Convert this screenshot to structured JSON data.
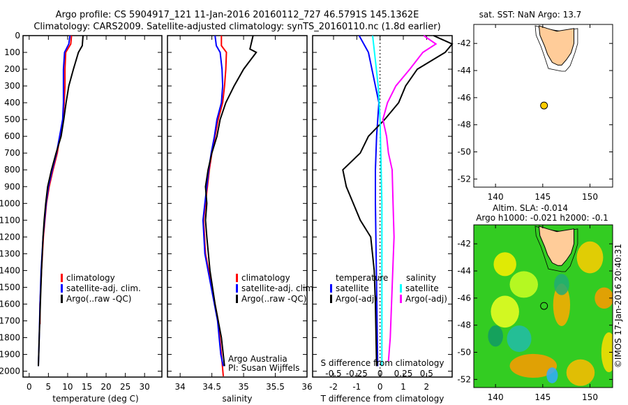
{
  "title": {
    "line1": "Argo profile: CS 5904917_121 11-Jan-2016 20160112_727 46.5791S 145.1362E",
    "line2": "Climatology: CARS2009. Satellite-adjusted climatology: synTS_20160110.nc (1.8d earlier)"
  },
  "colors": {
    "climatology": "#ff0000",
    "satellite": "#0000ff",
    "argo": "#000000",
    "sal_satellite": "#00ffff",
    "sal_argo": "#ff00ff",
    "land": "#ffcc99",
    "argo_marker": "#ffcc00"
  },
  "chart_data": [
    {
      "type": "line",
      "id": "temperature",
      "xlabel": "temperature (deg C)",
      "ylabel": "",
      "xlim": [
        -1.6,
        34.5
      ],
      "ylim": [
        2035,
        0
      ],
      "xticks": [
        0,
        5,
        10,
        15,
        20,
        25,
        30
      ],
      "yticks": [
        0,
        100,
        200,
        300,
        400,
        500,
        600,
        700,
        800,
        900,
        1000,
        1100,
        1200,
        1300,
        1400,
        1500,
        1600,
        1700,
        1800,
        1900,
        2000
      ],
      "legend": [
        "climatology",
        "satellite-adj. clim.",
        "Argo(..raw -QC)"
      ],
      "series": [
        {
          "name": "climatology",
          "color": "#ff0000",
          "points": [
            [
              11,
              0
            ],
            [
              10.8,
              50
            ],
            [
              9.5,
              100
            ],
            [
              9.3,
              200
            ],
            [
              9.3,
              300
            ],
            [
              9.1,
              400
            ],
            [
              8.8,
              500
            ],
            [
              8,
              600
            ],
            [
              7.3,
              700
            ],
            [
              6.2,
              800
            ],
            [
              5.2,
              900
            ],
            [
              4.5,
              1000
            ],
            [
              3.7,
              1200
            ],
            [
              3.2,
              1400
            ],
            [
              2.8,
              1600
            ],
            [
              2.8,
              1720
            ]
          ]
        },
        {
          "name": "satellite-adj. clim.",
          "color": "#0000ff",
          "points": [
            [
              10.6,
              0
            ],
            [
              10.3,
              50
            ],
            [
              9.2,
              100
            ],
            [
              8.9,
              200
            ],
            [
              8.9,
              300
            ],
            [
              8.9,
              400
            ],
            [
              8.7,
              500
            ],
            [
              7.9,
              600
            ],
            [
              7.1,
              700
            ],
            [
              6,
              800
            ],
            [
              5,
              900
            ],
            [
              4.4,
              1000
            ],
            [
              3.6,
              1200
            ],
            [
              3.1,
              1400
            ],
            [
              2.8,
              1600
            ],
            [
              2.6,
              1800
            ],
            [
              2.4,
              1970
            ]
          ]
        },
        {
          "name": "Argo(..raw -QC)",
          "color": "#000000",
          "points": [
            [
              14,
              0
            ],
            [
              13.8,
              60
            ],
            [
              12.8,
              100
            ],
            [
              11.5,
              200
            ],
            [
              10.3,
              300
            ],
            [
              9.6,
              400
            ],
            [
              9,
              500
            ],
            [
              8.3,
              600
            ],
            [
              7,
              700
            ],
            [
              5.8,
              800
            ],
            [
              4.8,
              900
            ],
            [
              4.3,
              1000
            ],
            [
              3.9,
              1100
            ],
            [
              3.6,
              1200
            ],
            [
              3.2,
              1400
            ],
            [
              2.9,
              1600
            ],
            [
              2.6,
              1800
            ],
            [
              2.4,
              1970
            ]
          ]
        }
      ]
    },
    {
      "type": "line",
      "id": "salinity",
      "xlabel": "salinity",
      "xlim": [
        33.8,
        36.0
      ],
      "ylim": [
        2035,
        0
      ],
      "xticks": [
        34,
        34.5,
        35,
        35.5,
        36
      ],
      "legend": [
        "climatology",
        "satellite-adj. clim.",
        "Argo(..raw -QC)"
      ],
      "annotation": [
        "Argo Australia",
        "PI: Susan Wijffels"
      ],
      "series": [
        {
          "name": "climatology",
          "color": "#ff0000",
          "points": [
            [
              34.65,
              0
            ],
            [
              34.65,
              60
            ],
            [
              34.73,
              100
            ],
            [
              34.72,
              200
            ],
            [
              34.7,
              300
            ],
            [
              34.67,
              400
            ],
            [
              34.6,
              500
            ],
            [
              34.55,
              600
            ],
            [
              34.5,
              700
            ],
            [
              34.46,
              800
            ],
            [
              34.4,
              1000
            ],
            [
              34.37,
              1100
            ],
            [
              34.4,
              1300
            ],
            [
              34.5,
              1500
            ],
            [
              34.6,
              1700
            ],
            [
              34.65,
              1900
            ],
            [
              34.68,
              2030
            ]
          ]
        },
        {
          "name": "satellite-adj. clim.",
          "color": "#0000ff",
          "points": [
            [
              34.55,
              0
            ],
            [
              34.57,
              60
            ],
            [
              34.63,
              100
            ],
            [
              34.66,
              200
            ],
            [
              34.67,
              300
            ],
            [
              34.65,
              400
            ],
            [
              34.58,
              500
            ],
            [
              34.54,
              600
            ],
            [
              34.49,
              700
            ],
            [
              34.45,
              800
            ],
            [
              34.39,
              1000
            ],
            [
              34.36,
              1100
            ],
            [
              34.39,
              1300
            ],
            [
              34.49,
              1500
            ],
            [
              34.59,
              1700
            ],
            [
              34.64,
              1900
            ],
            [
              34.68,
              1970
            ]
          ]
        },
        {
          "name": "Argo(..raw -QC)",
          "color": "#000000",
          "points": [
            [
              35.15,
              0
            ],
            [
              35.1,
              80
            ],
            [
              35.2,
              100
            ],
            [
              35.0,
              200
            ],
            [
              34.85,
              300
            ],
            [
              34.72,
              400
            ],
            [
              34.63,
              500
            ],
            [
              34.58,
              600
            ],
            [
              34.5,
              700
            ],
            [
              34.44,
              800
            ],
            [
              34.4,
              900
            ],
            [
              34.42,
              1000
            ],
            [
              34.4,
              1100
            ],
            [
              34.42,
              1200
            ],
            [
              34.47,
              1400
            ],
            [
              34.55,
              1600
            ],
            [
              34.65,
              1800
            ],
            [
              34.7,
              1970
            ]
          ]
        }
      ]
    },
    {
      "type": "line",
      "id": "difference",
      "xlabel": "T difference from climatology",
      "x2label": "S difference from climatology",
      "xlim": [
        -2.9,
        3.1
      ],
      "x2lim": [
        -0.725,
        0.775
      ],
      "ylim": [
        2035,
        0
      ],
      "xticks": [
        -2,
        -1,
        0,
        1,
        2
      ],
      "x2ticks": [
        -0.5,
        -0.25,
        0,
        0.25,
        0.5
      ],
      "x2ticklabels": [
        "-0.5",
        "-0.25",
        "0",
        "0.25",
        "0.5"
      ],
      "legend_temperature": {
        "title": "temperature",
        "items": [
          "satellite",
          "Argo(-adj)"
        ]
      },
      "legend_salinity": {
        "title": "salinity",
        "items": [
          "satellite",
          "Argo(-adj)"
        ]
      },
      "series": [
        {
          "name": "T satellite",
          "axis": "T",
          "color": "#0000ff",
          "points": [
            [
              -0.9,
              0
            ],
            [
              -0.5,
              100
            ],
            [
              -0.2,
              300
            ],
            [
              -0.05,
              400
            ],
            [
              -0.15,
              600
            ],
            [
              -0.2,
              800
            ],
            [
              -0.2,
              1000
            ],
            [
              -0.15,
              1500
            ],
            [
              -0.1,
              1970
            ]
          ]
        },
        {
          "name": "T Argo(-adj)",
          "axis": "T",
          "color": "#000000",
          "points": [
            [
              2.3,
              0
            ],
            [
              3.1,
              50
            ],
            [
              2.8,
              100
            ],
            [
              1.6,
              200
            ],
            [
              1.1,
              300
            ],
            [
              0.8,
              400
            ],
            [
              0.2,
              500
            ],
            [
              -0.5,
              600
            ],
            [
              -0.85,
              700
            ],
            [
              -1.6,
              800
            ],
            [
              -1.45,
              900
            ],
            [
              -1.15,
              1000
            ],
            [
              -0.85,
              1100
            ],
            [
              -0.4,
              1200
            ],
            [
              -0.25,
              1400
            ],
            [
              -0.2,
              1600
            ],
            [
              -0.15,
              1970
            ]
          ]
        },
        {
          "name": "S satellite",
          "axis": "S",
          "color": "#00ffff",
          "points": [
            [
              -0.08,
              0
            ],
            [
              -0.06,
              100
            ],
            [
              -0.02,
              300
            ],
            [
              0,
              500
            ],
            [
              0.02,
              1000
            ],
            [
              0.02,
              1970
            ]
          ]
        },
        {
          "name": "S Argo(-adj)",
          "axis": "S",
          "color": "#ff00ff",
          "points": [
            [
              0.47,
              0
            ],
            [
              0.6,
              50
            ],
            [
              0.46,
              100
            ],
            [
              0.32,
              200
            ],
            [
              0.17,
              300
            ],
            [
              0.08,
              400
            ],
            [
              0.03,
              500
            ],
            [
              0.07,
              600
            ],
            [
              0.09,
              700
            ],
            [
              0.13,
              800
            ],
            [
              0.14,
              1000
            ],
            [
              0.15,
              1200
            ],
            [
              0.13,
              1500
            ],
            [
              0.11,
              1800
            ],
            [
              0.09,
              1940
            ]
          ]
        }
      ]
    }
  ],
  "map_sst": {
    "title": "sat. SST: NaN Argo: 13.7",
    "lonlim": [
      137.7,
      152.4
    ],
    "latlim": [
      -52.6,
      -40.6
    ],
    "xticks": [
      140,
      145,
      150
    ],
    "yticks": [
      -42,
      -44,
      -46,
      -48,
      -50,
      -52
    ],
    "argo_position": [
      145.1362,
      -46.5791
    ]
  },
  "map_sla": {
    "title1": "Altim. SLA: -0.014",
    "title2": "Argo h1000: -0.021 h2000: -0.1",
    "lonlim": [
      137.7,
      152.4
    ],
    "latlim": [
      -52.6,
      -40.6
    ],
    "xticks": [
      140,
      145,
      150
    ],
    "yticks": [
      -42,
      -44,
      -46,
      -48,
      -50,
      -52
    ],
    "argo_position": [
      145.1362,
      -46.5791
    ],
    "credit": "©IMOS 17-Jan-2016 20:40:31"
  },
  "tasmania": [
    [
      144.6,
      -40.7
    ],
    [
      145.5,
      -40.9
    ],
    [
      146.5,
      -41.1
    ],
    [
      148.3,
      -40.9
    ],
    [
      148.3,
      -42.0
    ],
    [
      148.0,
      -42.7
    ],
    [
      147.5,
      -43.2
    ],
    [
      147.0,
      -43.6
    ],
    [
      146.6,
      -43.6
    ],
    [
      146.0,
      -43.4
    ],
    [
      145.5,
      -42.8
    ],
    [
      145.2,
      -42.2
    ],
    [
      144.7,
      -41.4
    ]
  ]
}
